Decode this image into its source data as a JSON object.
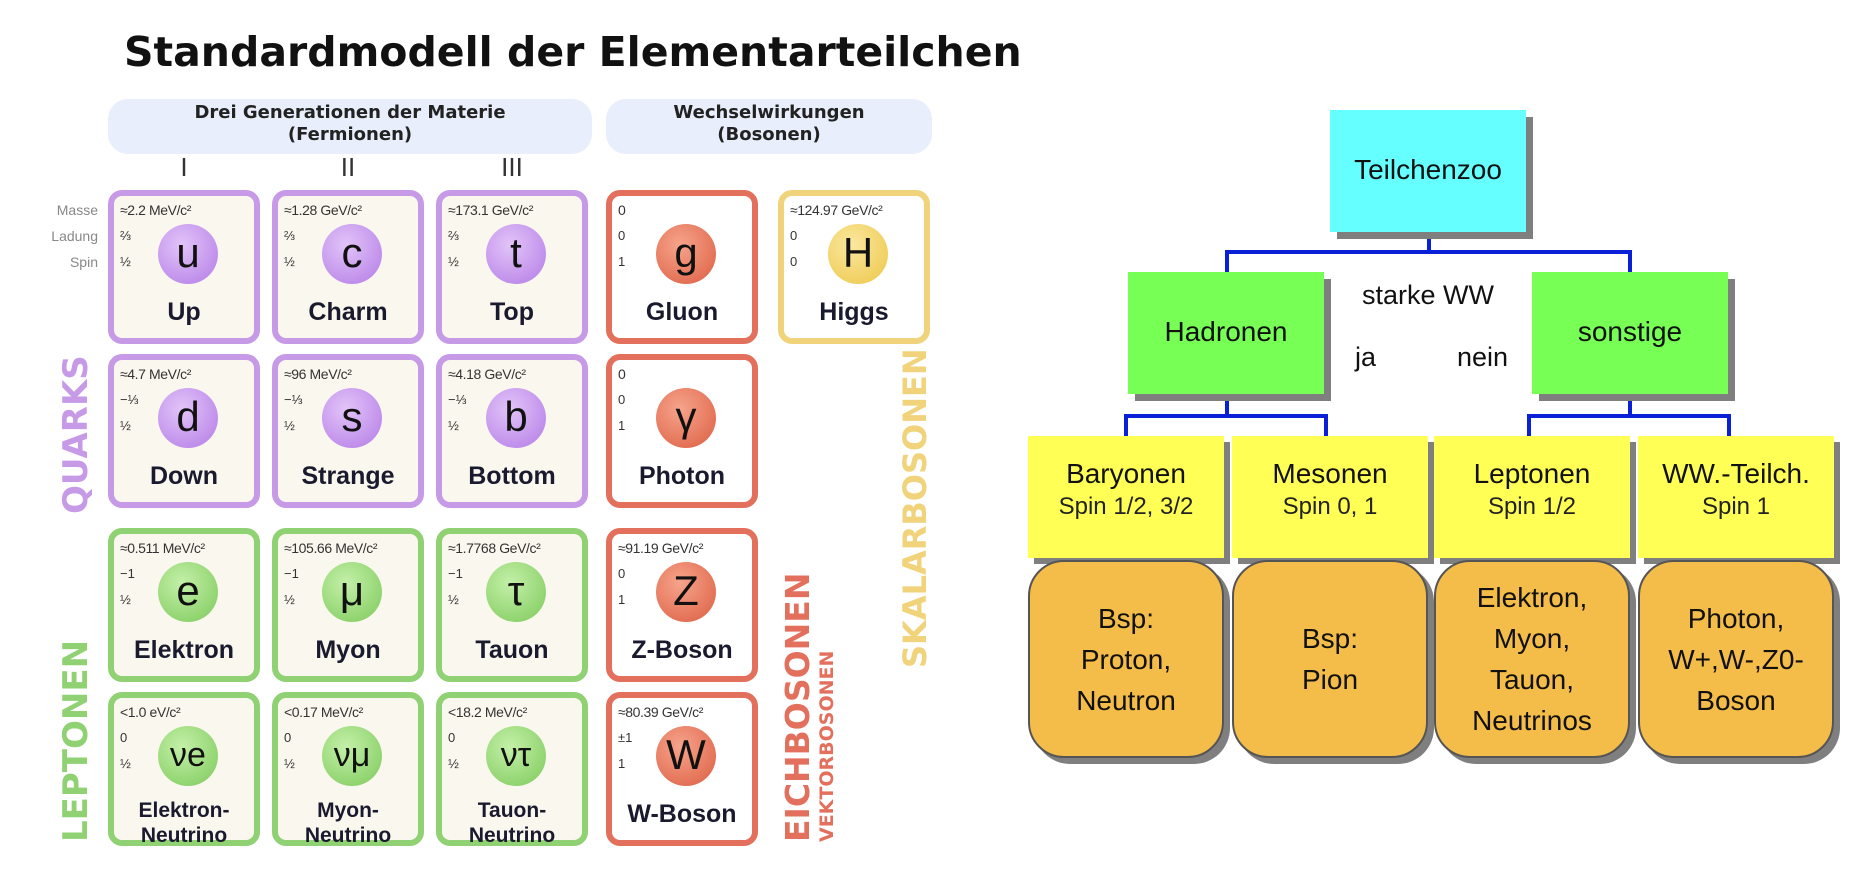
{
  "left": {
    "title": "Standardmodell der Elementarteilchen",
    "headers": {
      "fermions": [
        "Drei Generationen der Materie",
        "(Fermionen)"
      ],
      "bosons": [
        "Wechselwirkungen",
        "(Bosonen)"
      ]
    },
    "generations": [
      "I",
      "II",
      "III"
    ],
    "row_labels": [
      "Masse",
      "Ladung",
      "Spin"
    ],
    "group_labels": {
      "quarks": "QUARKS",
      "leptons": "LEPTONEN",
      "gauge": "EICHBOSONEN",
      "vector": "VEKTORBOSONEN",
      "scalar": "SKALARBOSONEN"
    },
    "colors": {
      "quark": "#c79ae8",
      "lepton": "#8fd173",
      "gauge": "#e3705c",
      "scalar": "#f0d37a"
    },
    "particles": [
      {
        "symbol": "u",
        "name": "Up",
        "mass": "≈2.2 MeV/c²",
        "charge": "⅔",
        "spin": "½",
        "kind": "quark"
      },
      {
        "symbol": "c",
        "name": "Charm",
        "mass": "≈1.28 GeV/c²",
        "charge": "⅔",
        "spin": "½",
        "kind": "quark"
      },
      {
        "symbol": "t",
        "name": "Top",
        "mass": "≈173.1 GeV/c²",
        "charge": "⅔",
        "spin": "½",
        "kind": "quark"
      },
      {
        "symbol": "g",
        "name": "Gluon",
        "mass": "0",
        "charge": "0",
        "spin": "1",
        "kind": "gauge"
      },
      {
        "symbol": "H",
        "name": "Higgs",
        "mass": "≈124.97 GeV/c²",
        "charge": "0",
        "spin": "0",
        "kind": "scalar"
      },
      {
        "symbol": "d",
        "name": "Down",
        "mass": "≈4.7 MeV/c²",
        "charge": "−⅓",
        "spin": "½",
        "kind": "quark"
      },
      {
        "symbol": "s",
        "name": "Strange",
        "mass": "≈96 MeV/c²",
        "charge": "−⅓",
        "spin": "½",
        "kind": "quark"
      },
      {
        "symbol": "b",
        "name": "Bottom",
        "mass": "≈4.18 GeV/c²",
        "charge": "−⅓",
        "spin": "½",
        "kind": "quark"
      },
      {
        "symbol": "γ",
        "name": "Photon",
        "mass": "0",
        "charge": "0",
        "spin": "1",
        "kind": "gauge"
      },
      {
        "symbol": "e",
        "name": "Elektron",
        "mass": "≈0.511 MeV/c²",
        "charge": "−1",
        "spin": "½",
        "kind": "lepton"
      },
      {
        "symbol": "μ",
        "name": "Myon",
        "mass": "≈105.66 MeV/c²",
        "charge": "−1",
        "spin": "½",
        "kind": "lepton"
      },
      {
        "symbol": "τ",
        "name": "Tauon",
        "mass": "≈1.7768 GeV/c²",
        "charge": "−1",
        "spin": "½",
        "kind": "lepton"
      },
      {
        "symbol": "Z",
        "name": "Z-Boson",
        "mass": "≈91.19 GeV/c²",
        "charge": "0",
        "spin": "1",
        "kind": "gauge"
      },
      {
        "symbol": "νe",
        "name": "Elektron-Neutrino",
        "name_lines": [
          "Elektron-",
          "Neutrino"
        ],
        "mass": "<1.0 eV/c²",
        "charge": "0",
        "spin": "½",
        "kind": "lepton"
      },
      {
        "symbol": "νμ",
        "name": "Myon-Neutrino",
        "name_lines": [
          "Myon-",
          "Neutrino"
        ],
        "mass": "<0.17 MeV/c²",
        "charge": "0",
        "spin": "½",
        "kind": "lepton"
      },
      {
        "symbol": "ντ",
        "name": "Tauon-Neutrino",
        "name_lines": [
          "Tauon-",
          "Neutrino"
        ],
        "mass": "<18.2 MeV/c²",
        "charge": "0",
        "spin": "½",
        "kind": "lepton"
      },
      {
        "symbol": "W",
        "name": "W-Boson",
        "mass": "≈80.39 GeV/c²",
        "charge": "±1",
        "spin": "1",
        "kind": "gauge"
      }
    ]
  },
  "right": {
    "root": "Teilchenzoo",
    "criterion": "starke WW",
    "yes": "ja",
    "no": "nein",
    "hadrons": "Hadronen",
    "others": "sonstige",
    "categories": [
      {
        "name": "Baryonen",
        "spin": "Spin 1/2, 3/2"
      },
      {
        "name": "Mesonen",
        "spin": "Spin 0, 1"
      },
      {
        "name": "Leptonen",
        "spin": "Spin 1/2"
      },
      {
        "name": "WW.-Teilch.",
        "spin": "Spin 1"
      }
    ],
    "examples": [
      [
        "Bsp:",
        "Proton,",
        "Neutron"
      ],
      [
        "Bsp:",
        "Pion"
      ],
      [
        "Elektron,",
        "Myon,",
        "Tauon,",
        "Neutrinos"
      ],
      [
        "Photon,",
        "W+,W-,Z0-",
        "Boson"
      ]
    ],
    "colors": {
      "root": "#66ffff",
      "level2": "#77ff55",
      "level3": "#ffff55",
      "leaf": "#f4bc48",
      "line": "#0a1fd8"
    }
  }
}
